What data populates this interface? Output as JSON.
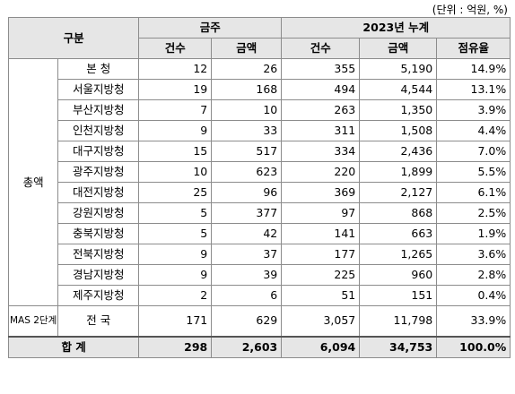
{
  "unit_note": "(단위 : 억원, %)",
  "header": {
    "category": "구분",
    "group_monthly": "금주",
    "group_cumulative": "2023년 누계",
    "col_count": "건수",
    "col_amount": "금액",
    "col_count2": "건수",
    "col_amount2": "금액",
    "col_share": "점유율"
  },
  "group_total_label": "총액",
  "group_mas_label": "MAS 2단계",
  "rows": [
    {
      "name": "본    청",
      "w_count": "12",
      "w_amount": "26",
      "c_count": "355",
      "c_amount": "5,190",
      "share": "14.9%"
    },
    {
      "name": "서울지방청",
      "w_count": "19",
      "w_amount": "168",
      "c_count": "494",
      "c_amount": "4,544",
      "share": "13.1%"
    },
    {
      "name": "부산지방청",
      "w_count": "7",
      "w_amount": "10",
      "c_count": "263",
      "c_amount": "1,350",
      "share": "3.9%"
    },
    {
      "name": "인천지방청",
      "w_count": "9",
      "w_amount": "33",
      "c_count": "311",
      "c_amount": "1,508",
      "share": "4.4%"
    },
    {
      "name": "대구지방청",
      "w_count": "15",
      "w_amount": "517",
      "c_count": "334",
      "c_amount": "2,436",
      "share": "7.0%"
    },
    {
      "name": "광주지방청",
      "w_count": "10",
      "w_amount": "623",
      "c_count": "220",
      "c_amount": "1,899",
      "share": "5.5%"
    },
    {
      "name": "대전지방청",
      "w_count": "25",
      "w_amount": "96",
      "c_count": "369",
      "c_amount": "2,127",
      "share": "6.1%"
    },
    {
      "name": "강원지방청",
      "w_count": "5",
      "w_amount": "377",
      "c_count": "97",
      "c_amount": "868",
      "share": "2.5%"
    },
    {
      "name": "충북지방청",
      "w_count": "5",
      "w_amount": "42",
      "c_count": "141",
      "c_amount": "663",
      "share": "1.9%"
    },
    {
      "name": "전북지방청",
      "w_count": "9",
      "w_amount": "37",
      "c_count": "177",
      "c_amount": "1,265",
      "share": "3.6%"
    },
    {
      "name": "경남지방청",
      "w_count": "9",
      "w_amount": "39",
      "c_count": "225",
      "c_amount": "960",
      "share": "2.8%"
    },
    {
      "name": "제주지방청",
      "w_count": "2",
      "w_amount": "6",
      "c_count": "51",
      "c_amount": "151",
      "share": "0.4%"
    }
  ],
  "mas_row": {
    "name": "전    국",
    "w_count": "171",
    "w_amount": "629",
    "c_count": "3,057",
    "c_amount": "11,798",
    "share": "33.9%"
  },
  "total_row": {
    "name": "합    계",
    "w_count": "298",
    "w_amount": "2,603",
    "c_count": "6,094",
    "c_amount": "34,753",
    "share": "100.0%"
  }
}
